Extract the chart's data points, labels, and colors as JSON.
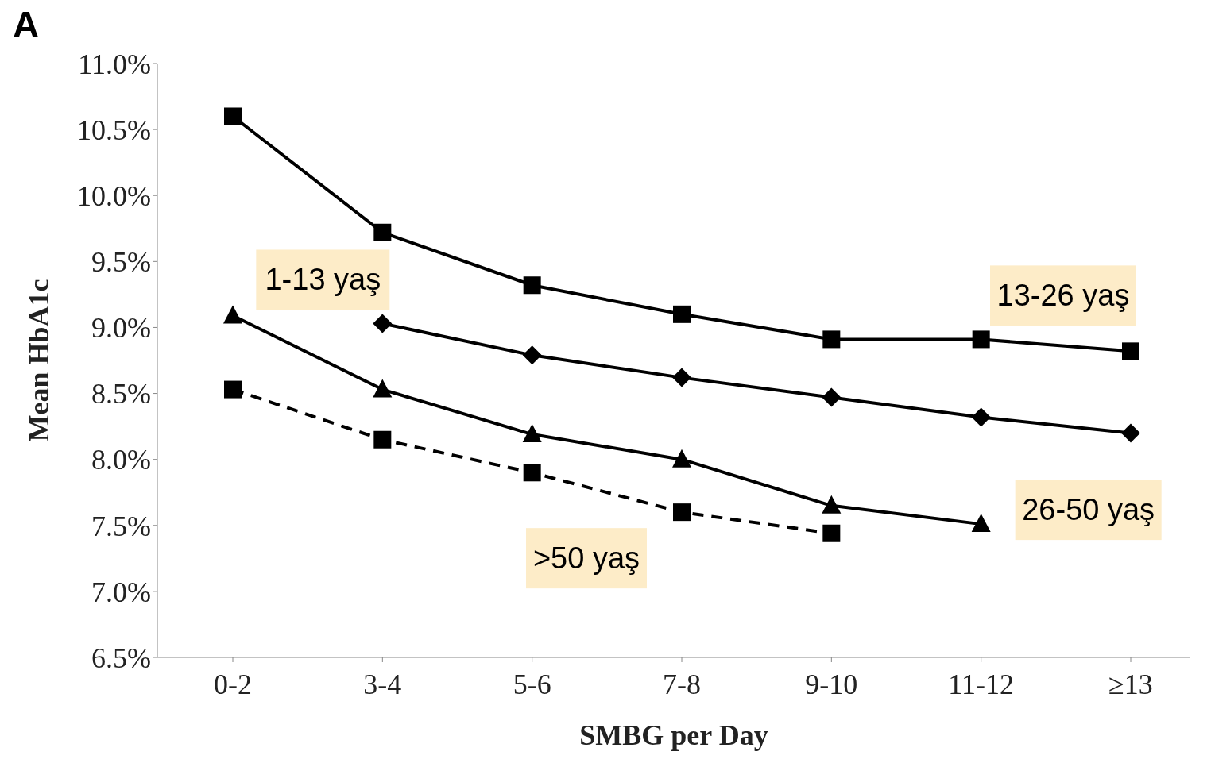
{
  "chart_data": {
    "type": "line",
    "title": "A",
    "xlabel": "SMBG per Day",
    "ylabel": "Mean HbA1c",
    "categories": [
      "0-2",
      "3-4",
      "5-6",
      "7-8",
      "9-10",
      "11-12",
      "≥13"
    ],
    "ylim": [
      6.5,
      11
    ],
    "yticks": [
      {
        "value": 6.5,
        "label": "6.5%"
      },
      {
        "value": 7,
        "label": "7.0%"
      },
      {
        "value": 7.5,
        "label": "7.5%"
      },
      {
        "value": 8,
        "label": "8.0%"
      },
      {
        "value": 8.5,
        "label": "8.5%"
      },
      {
        "value": 9,
        "label": "9.0%"
      },
      {
        "value": 9.5,
        "label": "9.5%"
      },
      {
        "value": 10,
        "label": "10.0%"
      },
      {
        "value": 10.5,
        "label": "10.5%"
      },
      {
        "value": 11,
        "label": "11.0%"
      }
    ],
    "grid": false,
    "legend": false,
    "series": [
      {
        "name": "13-26 yaş",
        "color": "#000000",
        "marker": "square",
        "line_style": "solid",
        "values": [
          10.6,
          9.72,
          9.32,
          9.1,
          8.91,
          8.91,
          8.82
        ]
      },
      {
        "name": "1-13 yaş",
        "color": "#000000",
        "marker": "diamond",
        "line_style": "solid",
        "values": [
          null,
          9.03,
          8.79,
          8.62,
          8.47,
          8.32,
          8.2
        ]
      },
      {
        "name": "26-50 yaş",
        "color": "#000000",
        "marker": "triangle",
        "line_style": "solid",
        "values": [
          9.09,
          8.53,
          8.19,
          8.0,
          7.65,
          7.51,
          null
        ]
      },
      {
        "name": ">50 yaş",
        "color": "#000000",
        "marker": "square",
        "line_style": "dashed",
        "values": [
          8.53,
          8.15,
          7.9,
          7.6,
          7.44,
          null,
          null
        ]
      }
    ]
  }
}
